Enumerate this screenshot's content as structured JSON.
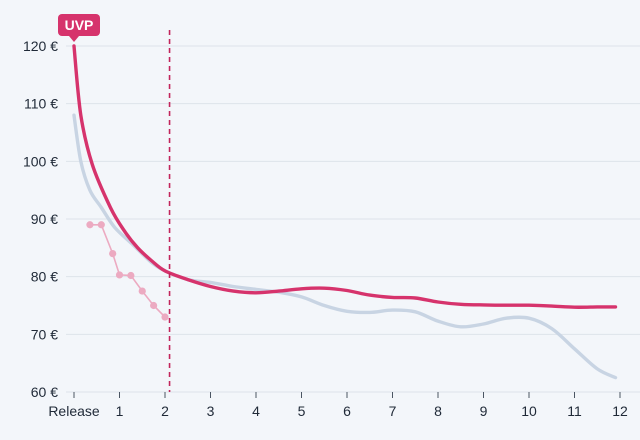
{
  "chart_data": {
    "type": "line",
    "x_ticks": [
      "Release",
      "1",
      "2",
      "3",
      "4",
      "5",
      "6",
      "7",
      "8",
      "9",
      "10",
      "11",
      "12"
    ],
    "y_ticks": [
      "60 €",
      "70 €",
      "80 €",
      "90 €",
      "100 €",
      "110 €",
      "120 €"
    ],
    "xlim": [
      0,
      12
    ],
    "ylim": [
      60,
      120
    ],
    "grid": "horizontal",
    "marker_x": 2.1,
    "colors": {
      "main": "#d6336c",
      "comparison": "#c8d4e3",
      "early": "#ecaac1",
      "marker": "#c2255c",
      "badge": "#d6336c",
      "grid": "#dde3ea"
    },
    "annotations": [
      {
        "label": "UVP",
        "x": 0,
        "y": 120
      }
    ],
    "series": [
      {
        "style": "solid",
        "color": "#c8d4e3",
        "points": [
          [
            0,
            108
          ],
          [
            0.15,
            100
          ],
          [
            0.35,
            95
          ],
          [
            0.6,
            92
          ],
          [
            0.9,
            88.5
          ],
          [
            1.3,
            85.5
          ],
          [
            1.7,
            82.5
          ],
          [
            2.0,
            81
          ],
          [
            2.5,
            79.5
          ],
          [
            3.0,
            79
          ],
          [
            3.5,
            78.3
          ],
          [
            4.0,
            77.8
          ],
          [
            4.5,
            77.3
          ],
          [
            5.0,
            76.5
          ],
          [
            5.5,
            75
          ],
          [
            6.0,
            74
          ],
          [
            6.5,
            73.8
          ],
          [
            7.0,
            74.2
          ],
          [
            7.5,
            73.9
          ],
          [
            8.0,
            72.3
          ],
          [
            8.5,
            71.3
          ],
          [
            9.0,
            71.8
          ],
          [
            9.5,
            72.8
          ],
          [
            10.0,
            72.8
          ],
          [
            10.5,
            71
          ],
          [
            11.0,
            67.5
          ],
          [
            11.5,
            64
          ],
          [
            11.9,
            62.5
          ]
        ]
      },
      {
        "style": "solid",
        "color": "#d6336c",
        "points": [
          [
            0,
            120
          ],
          [
            0.15,
            108
          ],
          [
            0.4,
            99.5
          ],
          [
            0.8,
            92
          ],
          [
            1.1,
            88
          ],
          [
            1.4,
            85
          ],
          [
            1.7,
            82.8
          ],
          [
            2.0,
            81
          ],
          [
            2.5,
            79.5
          ],
          [
            3.0,
            78.3
          ],
          [
            3.5,
            77.5
          ],
          [
            4.0,
            77.2
          ],
          [
            4.5,
            77.5
          ],
          [
            5.0,
            77.9
          ],
          [
            5.5,
            78
          ],
          [
            6.0,
            77.6
          ],
          [
            6.5,
            76.8
          ],
          [
            7.0,
            76.4
          ],
          [
            7.5,
            76.3
          ],
          [
            8.0,
            75.6
          ],
          [
            8.5,
            75.2
          ],
          [
            9.0,
            75.1
          ],
          [
            9.5,
            75.05
          ],
          [
            10.0,
            75.05
          ],
          [
            10.5,
            74.9
          ],
          [
            11.0,
            74.7
          ],
          [
            11.5,
            74.75
          ],
          [
            11.9,
            74.75
          ]
        ]
      },
      {
        "style": "dots",
        "color": "#ecaac1",
        "points": [
          [
            0.35,
            89
          ],
          [
            0.6,
            89
          ],
          [
            0.85,
            84
          ],
          [
            1.0,
            80.3
          ],
          [
            1.25,
            80.2
          ],
          [
            1.5,
            77.5
          ],
          [
            1.75,
            75
          ],
          [
            2.0,
            73
          ]
        ]
      }
    ]
  }
}
